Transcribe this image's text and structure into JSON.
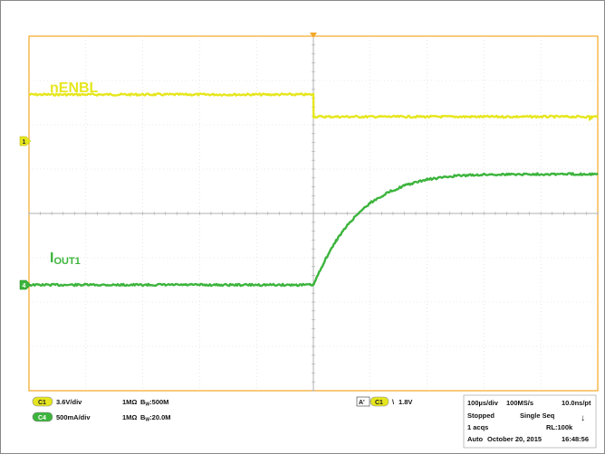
{
  "chart_data": {
    "type": "line",
    "title": "",
    "x": {
      "unit": "µs",
      "range": [
        -500,
        500
      ],
      "per_div_label": "100µs/div"
    },
    "series": [
      {
        "name": "nENBL",
        "channel": "C1",
        "color": "#e6e61e",
        "scale": "3.6V/div",
        "points": [
          [
            -500,
            1.05
          ],
          [
            0,
            1.05
          ],
          [
            0.5,
            0.55
          ],
          [
            500,
            0.55
          ]
        ]
      },
      {
        "name": "IOUT1",
        "channel": "C4",
        "color": "#3cb43c",
        "scale": "500mA/div",
        "points": [
          [
            -500,
            0
          ],
          [
            0,
            0
          ],
          [
            20,
            0.55
          ],
          [
            40,
            1.0
          ],
          [
            60,
            1.35
          ],
          [
            80,
            1.63
          ],
          [
            100,
            1.85
          ],
          [
            130,
            2.08
          ],
          [
            160,
            2.24
          ],
          [
            200,
            2.38
          ],
          [
            250,
            2.46
          ],
          [
            300,
            2.49
          ],
          [
            400,
            2.5
          ],
          [
            500,
            2.5
          ]
        ]
      }
    ],
    "channel_labels": {
      "c1_label": "nENBL",
      "c4_main": "I",
      "c4_sub": "OUT1"
    }
  },
  "status": {
    "ch1": {
      "tag": "C1",
      "scale": "3.6V/div",
      "coupling": "1MΩ",
      "bw_label": "B",
      "bw_sub": "W",
      "bw_value": ":500M"
    },
    "ch4": {
      "tag": "C4",
      "scale": "500mA/div",
      "coupling": "1MΩ",
      "bw_label": "B",
      "bw_sub": "W",
      "bw_value": ":20.0M"
    },
    "trigger": {
      "tag": "A'",
      "channel": "C1",
      "slope": "\\",
      "level": "1.8V"
    },
    "acq": {
      "timebase": "100µs/div",
      "sample_rate": "100MS/s",
      "resolution": "10.0ns/pt",
      "state": "Stopped",
      "mode": "Single Seq",
      "acqs": "1 acqs",
      "record": "RL:100k",
      "auto": "Auto",
      "date": "October 20, 2015",
      "time": "16:48:56"
    }
  },
  "colors": {
    "grid_border": "#f5a623",
    "grid_line": "#c8c8c8",
    "ch1": "#e6e61e",
    "ch4": "#3cb43c"
  }
}
